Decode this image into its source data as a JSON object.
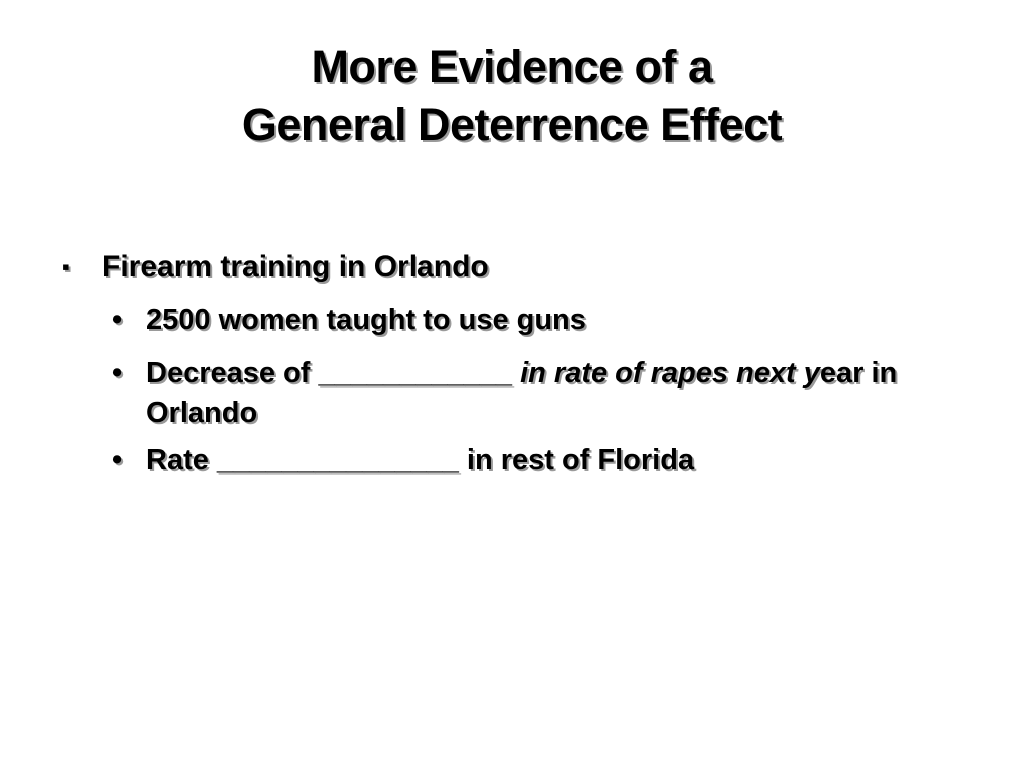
{
  "slide": {
    "title_line1": "More Evidence of a",
    "title_line2": "General Deterrence Effect",
    "bullet_main": {
      "marker": "▪",
      "text": "Firearm training in Orlando"
    },
    "sub_bullets": {
      "marker": "•",
      "item1": "2500 women taught to use guns",
      "item2_part1": "Decrease of ____________ ",
      "item2_part2": "in rate of rapes next y",
      "item2_part3": "ear in Orlando",
      "item3": "Rate _______________ in rest of Florida"
    }
  }
}
